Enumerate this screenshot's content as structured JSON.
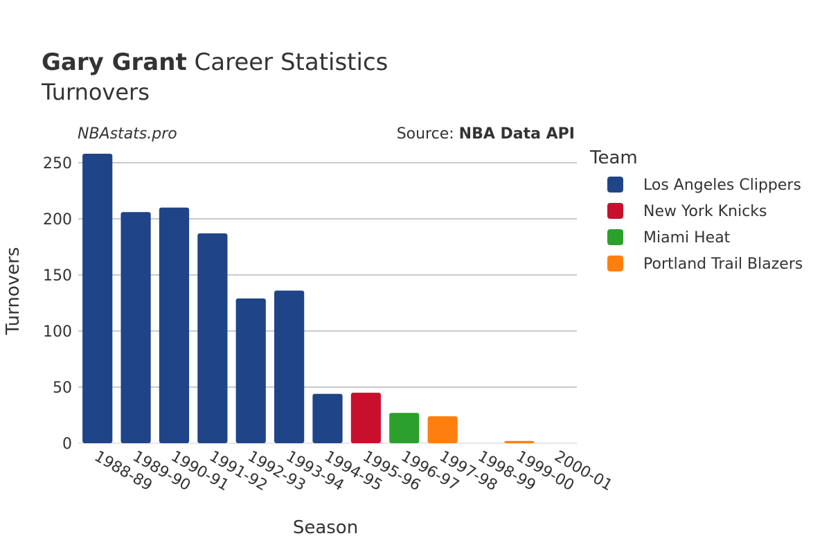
{
  "header": {
    "player_name": "Gary Grant",
    "title_rest": "Career Statistics",
    "subtitle": "Turnovers"
  },
  "watermark": "NBAstats.pro",
  "source": {
    "prefix": "Source: ",
    "name": "NBA Data API"
  },
  "legend": {
    "title": "Team"
  },
  "chart_data": {
    "type": "bar",
    "xlabel": "Season",
    "ylabel": "Turnovers",
    "ylim": [
      0,
      265
    ],
    "yticks": [
      0,
      50,
      100,
      150,
      200,
      250
    ],
    "grid": true,
    "legend_position": "right",
    "categories": [
      "1988-89",
      "1989-90",
      "1990-91",
      "1991-92",
      "1992-93",
      "1993-94",
      "1994-95",
      "1995-96",
      "1996-97",
      "1997-98",
      "1998-99",
      "1999-00",
      "2000-01"
    ],
    "series": [
      {
        "name": "Los Angeles Clippers",
        "color": "#1f4487",
        "values": [
          258,
          206,
          210,
          187,
          129,
          136,
          44,
          null,
          null,
          null,
          0,
          null,
          0
        ]
      },
      {
        "name": "New York Knicks",
        "color": "#c8102e",
        "values": [
          null,
          null,
          null,
          null,
          null,
          null,
          null,
          45,
          null,
          null,
          null,
          null,
          null
        ]
      },
      {
        "name": "Miami Heat",
        "color": "#2ca02c",
        "values": [
          null,
          null,
          null,
          null,
          null,
          null,
          null,
          null,
          27,
          null,
          null,
          null,
          null
        ]
      },
      {
        "name": "Portland Trail Blazers",
        "color": "#ff7f0e",
        "values": [
          null,
          null,
          null,
          null,
          null,
          null,
          null,
          null,
          null,
          24,
          null,
          2,
          null
        ]
      }
    ]
  }
}
